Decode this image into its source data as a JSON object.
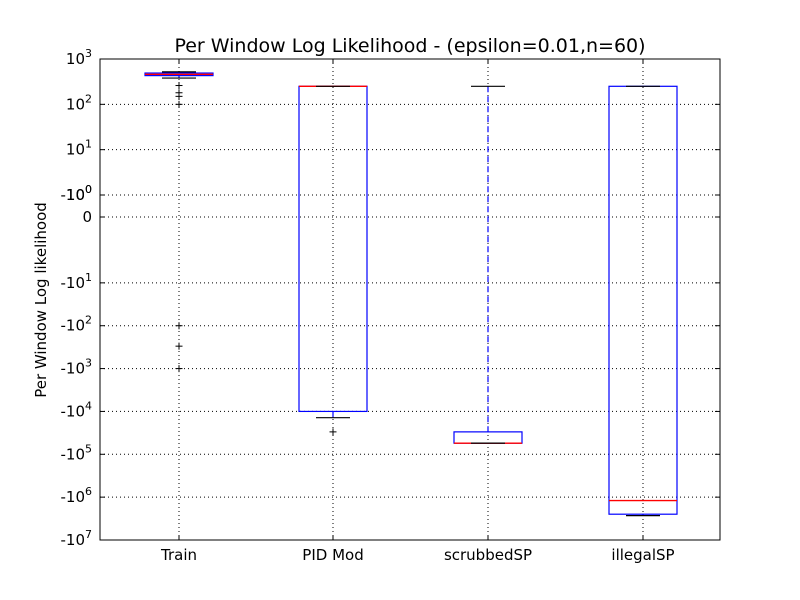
{
  "chart_data": {
    "type": "box",
    "title": "Per Window Log Likelihood - (epsilon=0.01,n=60)",
    "xlabel": "",
    "ylabel": "Per Window Log likelihood",
    "y_scale": "symlog",
    "y_linthresh": 1,
    "ylim": [
      -10000000,
      1000
    ],
    "grid": true,
    "y_ticks": [
      {
        "value": 1000,
        "base": "10",
        "exp": "3"
      },
      {
        "value": 100,
        "base": "10",
        "exp": "2"
      },
      {
        "value": 10,
        "base": "10",
        "exp": "1"
      },
      {
        "value": 1,
        "base": "10",
        "exp": "0"
      },
      {
        "value": 0,
        "base": "0",
        "exp": ""
      },
      {
        "value": -1,
        "base": "-10",
        "exp": "0"
      },
      {
        "value": -10,
        "base": "-10",
        "exp": "1"
      },
      {
        "value": -100,
        "base": "-10",
        "exp": "2"
      },
      {
        "value": -1000,
        "base": "-10",
        "exp": "3"
      },
      {
        "value": -10000,
        "base": "-10",
        "exp": "4"
      },
      {
        "value": -100000,
        "base": "-10",
        "exp": "5"
      },
      {
        "value": -1000000,
        "base": "-10",
        "exp": "6"
      },
      {
        "value": -10000000,
        "base": "-10",
        "exp": "7"
      }
    ],
    "categories": [
      "Train",
      "PID Mod",
      "scrubbedSP",
      "illegalSP"
    ],
    "boxes": [
      {
        "category": "Train",
        "whisker_low": 380,
        "q1": 430,
        "median": 460,
        "q3": 490,
        "whisker_high": 520,
        "outliers": [
          260,
          180,
          150,
          100,
          -100,
          -300,
          -1000
        ]
      },
      {
        "category": "PID Mod",
        "whisker_low": -14000,
        "q1": -10000,
        "median": 250,
        "q3": 250,
        "whisker_high": 250,
        "outliers": [
          -30000
        ]
      },
      {
        "category": "scrubbedSP",
        "whisker_low": -55000,
        "q1": -55000,
        "median": -55000,
        "q3": -30000,
        "whisker_high": 250,
        "outliers": []
      },
      {
        "category": "illegalSP",
        "whisker_low": -2700000,
        "q1": -2500000,
        "median": -1200000,
        "q3": 250,
        "whisker_high": 250,
        "outliers": []
      }
    ],
    "colors": {
      "box": "#0000ff",
      "median": "#ff0000",
      "cap": "#000000",
      "outlier": "#000000",
      "grid": "#000000"
    }
  }
}
